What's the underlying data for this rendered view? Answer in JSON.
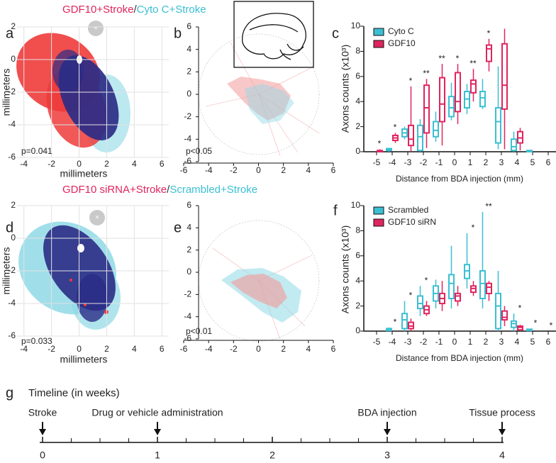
{
  "chart_data": [
    {
      "type": "density",
      "panel": "a",
      "title_parts": [
        {
          "text": "GDF10+Stroke",
          "color": "#e0245e"
        },
        {
          "text": "/",
          "color": "#333333"
        },
        {
          "text": "Cyto C+Stroke",
          "color": "#3bbfd3"
        }
      ],
      "x_label": "millimeters",
      "y_label": "millimeters",
      "annotation": "p=0.041",
      "xlim": [
        -4.5,
        6.5
      ],
      "xticks": [
        -4,
        -2,
        0,
        2,
        4,
        6
      ],
      "ylim": [
        -6,
        2
      ],
      "yticks": [
        -6,
        -4,
        -2,
        0,
        2
      ],
      "grid": true
    },
    {
      "type": "polar",
      "panel": "b",
      "annotation": "p<0.05",
      "xlim": [
        -6,
        6
      ],
      "xticks": [
        -6,
        -4,
        -2,
        0,
        2,
        4,
        6
      ],
      "ylim": [
        -6,
        6
      ],
      "yticks": [
        -6,
        -4,
        -2,
        0,
        2,
        4,
        6
      ]
    },
    {
      "type": "box",
      "panel": "c",
      "y_label": "Axons counts (x10³)",
      "x_label": "Distance from BDA injection (mm)",
      "categories": [
        "-5",
        "-4",
        "-3",
        "-2",
        "-1",
        "0",
        "1",
        "2",
        "3",
        "4",
        "5",
        "6"
      ],
      "ylim": [
        0,
        10
      ],
      "yticks": [
        0,
        2,
        4,
        6,
        8,
        10
      ],
      "series": [
        {
          "name": "Cyto C",
          "color": "#3bbfd3",
          "values": [
            null,
            [
              0,
              0.1,
              0.15,
              0.25,
              0.3
            ],
            [
              1.0,
              1.2,
              1.5,
              1.8,
              2.0
            ],
            [
              0,
              0.1,
              1.2,
              2.1,
              2.6
            ],
            [
              0.8,
              1.2,
              1.7,
              2.4,
              3.2
            ],
            [
              2.5,
              2.8,
              3.5,
              4.4,
              5.5
            ],
            [
              3.0,
              3.5,
              4.2,
              4.8,
              5.4
            ],
            [
              3.4,
              3.6,
              4.3,
              4.8,
              5.8
            ],
            [
              0.2,
              0.7,
              2.4,
              3.5,
              6.8
            ],
            [
              0,
              0.1,
              0.4,
              1.0,
              1.6
            ],
            [
              0,
              0,
              0.05,
              0.1,
              0.1
            ],
            null
          ]
        },
        {
          "name": "GDF10",
          "color": "#e0245e",
          "values": [
            [
              0,
              0,
              0.05,
              0.1,
              0.2
            ],
            [
              0.7,
              0.9,
              1.1,
              1.3,
              1.5
            ],
            [
              0,
              0.5,
              1.0,
              2.1,
              5.2
            ],
            [
              0.3,
              1.5,
              3.5,
              5.3,
              5.8
            ],
            [
              0.5,
              2.4,
              3.8,
              5.9,
              7.0
            ],
            [
              2.2,
              3.2,
              4.0,
              6.3,
              7.0
            ],
            [
              4.0,
              4.7,
              5.4,
              5.7,
              6.6
            ],
            [
              6.4,
              7.2,
              8.2,
              8.5,
              9.0
            ],
            [
              0.2,
              3.4,
              5.3,
              8.6,
              9.8
            ],
            [
              0.1,
              0.7,
              1.1,
              1.6,
              1.9
            ],
            null,
            null
          ]
        }
      ],
      "annotations": [
        "*",
        "*",
        "*",
        "**",
        "**",
        "*",
        "**",
        "*",
        null,
        null,
        null,
        null
      ]
    },
    {
      "type": "density",
      "panel": "d",
      "title_parts": [
        {
          "text": "GDF10 siRNA+Stroke",
          "color": "#e0245e"
        },
        {
          "text": "/",
          "color": "#333333"
        },
        {
          "text": "Scrambled+Stroke",
          "color": "#3bbfd3"
        }
      ],
      "x_label": "millimeters",
      "y_label": "millimeters",
      "annotation": "p=0.033",
      "xlim": [
        -4.5,
        6.5
      ],
      "xticks": [
        -4,
        -2,
        0,
        2,
        4,
        6
      ],
      "ylim": [
        -6,
        2
      ],
      "yticks": [
        -6,
        -4,
        -2,
        0,
        2
      ],
      "grid": true
    },
    {
      "type": "polar",
      "panel": "e",
      "annotation": "p<0.01",
      "xlim": [
        -6,
        6
      ],
      "xticks": [
        -6,
        -4,
        -2,
        0,
        2,
        4,
        6
      ],
      "ylim": [
        -6,
        6
      ],
      "yticks": [
        -6,
        -4,
        -2,
        0,
        2,
        4,
        6
      ]
    },
    {
      "type": "box",
      "panel": "f",
      "y_label": "Axons counts (x10³)",
      "x_label": "Distance from BDA injection (mm)",
      "categories": [
        "-5",
        "-4",
        "-3",
        "-2",
        "-1",
        "0",
        "1",
        "2",
        "3",
        "4",
        "5",
        "6"
      ],
      "ylim": [
        0,
        10
      ],
      "yticks": [
        0,
        2,
        4,
        6,
        8,
        10
      ],
      "series": [
        {
          "name": "Scrambled",
          "color": "#3bbfd3",
          "values": [
            null,
            [
              0,
              0.05,
              0.1,
              0.2,
              0.3
            ],
            [
              0,
              0.2,
              0.9,
              1.4,
              2.4
            ],
            [
              1.2,
              1.8,
              2.2,
              2.8,
              3.6
            ],
            [
              1.8,
              2.4,
              3.0,
              3.6,
              4.1
            ],
            [
              1.8,
              2.6,
              3.8,
              4.5,
              6.8
            ],
            [
              3.4,
              4.2,
              4.8,
              5.3,
              7.8
            ],
            [
              1.8,
              2.6,
              3.8,
              4.8,
              9.5
            ],
            [
              0,
              0.2,
              2.0,
              3.0,
              4.8
            ],
            [
              0,
              0.3,
              0.6,
              0.8,
              1.4
            ],
            [
              0,
              0.05,
              0.1,
              0.15,
              0.2
            ],
            null
          ]
        },
        {
          "name": "GDF10 siRN",
          "color": "#e0245e",
          "values": [
            null,
            null,
            [
              0,
              0.2,
              0.4,
              0.7,
              1.0
            ],
            [
              1.2,
              1.4,
              1.7,
              2.0,
              2.4
            ],
            [
              1.6,
              2.2,
              2.6,
              3.0,
              4.0
            ],
            [
              2.0,
              2.4,
              2.8,
              3.0,
              3.6
            ],
            [
              2.8,
              3.1,
              3.4,
              3.6,
              4.0
            ],
            [
              2.4,
              3.0,
              3.5,
              3.8,
              4.0
            ],
            [
              0.4,
              0.9,
              1.1,
              1.6,
              2.0
            ],
            [
              0,
              0.1,
              0.3,
              0.4,
              0.5
            ],
            null,
            null
          ]
        }
      ],
      "annotations": [
        null,
        "*",
        "*",
        "*",
        null,
        null,
        "*",
        "**",
        null,
        "*",
        "*",
        "*"
      ]
    },
    {
      "type": "timeline",
      "panel": "g",
      "title": "Timeline (in weeks)",
      "xlim": [
        0,
        4
      ],
      "xticks": [
        0,
        1,
        2,
        3,
        4
      ],
      "xminorticks": [
        0.25,
        0.5,
        0.75,
        1.25,
        1.5,
        1.75,
        2.25,
        2.5,
        2.75,
        3.25,
        3.5,
        3.75
      ],
      "events": [
        {
          "label": "Stroke",
          "x": 0
        },
        {
          "label": "Drug or vehicle administration",
          "x": 1
        },
        {
          "label": "BDA injection",
          "x": 3
        },
        {
          "label": "Tissue process",
          "x": 4
        }
      ]
    }
  ]
}
